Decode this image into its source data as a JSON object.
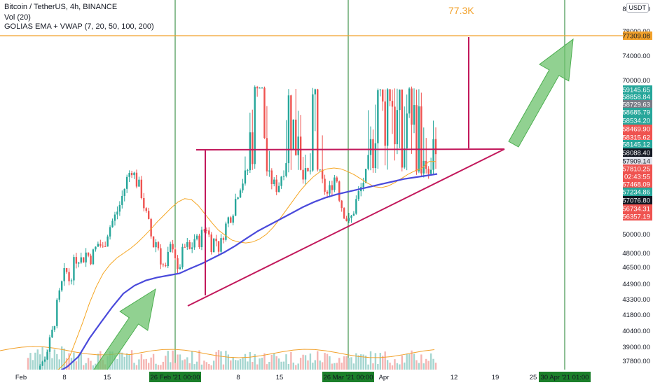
{
  "header": {
    "title": "Bitcoin / TetherUS, 4h, BINANCE",
    "vol": "Vol (20)",
    "indicator": "GOLIAS EMA + VWAP (7, 20, 50, 100, 200)"
  },
  "currency_button": "USDT",
  "target_annotation": "77.3K",
  "colors": {
    "up": "#26a69a",
    "down": "#ef5350",
    "ema": "#f5a623",
    "vwap": "#4a4adb",
    "triangle": "#c2185b",
    "arrow": "#6cc26c",
    "target_line": "#f2a12b",
    "vline": "#1b7f2a"
  },
  "chart_data": {
    "type": "candlestick",
    "symbol": "BTCUSDT",
    "timeframe": "4h",
    "exchange": "BINANCE",
    "y_axis": {
      "scale": "log",
      "ticks": [
        "80000.00",
        "78000.00",
        "74000.00",
        "70000.00",
        "50000.00",
        "48000.00",
        "46500.00",
        "44900.00",
        "43300.00",
        "41800.00",
        "40400.00",
        "39000.00",
        "37800.00"
      ],
      "labels": [
        {
          "text": "77309.08",
          "color": "#f2a12b",
          "fg": "#131722"
        },
        {
          "text": "59145.65",
          "color": "#26a69a",
          "fg": "#ffffff"
        },
        {
          "text": "58858.84",
          "color": "#26a69a",
          "fg": "#ffffff"
        },
        {
          "text": "58729.63",
          "color": "#787b86",
          "fg": "#ffffff"
        },
        {
          "text": "58685.79",
          "color": "#26a69a",
          "fg": "#ffffff"
        },
        {
          "text": "58534.20",
          "color": "#26a69a",
          "fg": "#ffffff"
        },
        {
          "text": "58469.90",
          "color": "#ef5350",
          "fg": "#ffffff"
        },
        {
          "text": "58315.62",
          "color": "#ef5350",
          "fg": "#ffffff"
        },
        {
          "text": "58145.12",
          "color": "#26a69a",
          "fg": "#ffffff"
        },
        {
          "text": "58088.40",
          "color": "#131722",
          "fg": "#ffffff"
        },
        {
          "text": "57909.14",
          "color": "#e0e3eb",
          "fg": "#131722"
        },
        {
          "text": "57810.25",
          "color": "#ef5350",
          "fg": "#ffffff"
        },
        {
          "text": "02:43:55",
          "color": "#ef5350",
          "fg": "#ffffff"
        },
        {
          "text": "57468.09",
          "color": "#ef5350",
          "fg": "#ffffff"
        },
        {
          "text": "57234.86",
          "color": "#26a69a",
          "fg": "#ffffff"
        },
        {
          "text": "57076.80",
          "color": "#131722",
          "fg": "#ffffff"
        },
        {
          "text": "56734.31",
          "color": "#ef5350",
          "fg": "#ffffff"
        },
        {
          "text": "56357.19",
          "color": "#ef5350",
          "fg": "#ffffff"
        }
      ]
    },
    "x_axis": {
      "ticks": [
        "Feb",
        "8",
        "15",
        "26 Feb '21  00:00",
        "8",
        "15",
        "26 Mar '21  00:00",
        "Apr",
        "12",
        "19",
        "25",
        "30 Apr '21  01:00"
      ],
      "highlighted": [
        "26 Feb '21  00:00",
        "26 Mar '21  00:00",
        "30 Apr '21  01:00"
      ]
    },
    "candles_close": [
      33500,
      34200,
      35800,
      36900,
      38200,
      39100,
      40500,
      42800,
      44600,
      46300,
      45100,
      46900,
      47800,
      47200,
      48100,
      47400,
      48300,
      49200,
      48400,
      50100,
      51300,
      52200,
      53400,
      55100,
      56900,
      57800,
      56200,
      55400,
      53000,
      51200,
      48800,
      49400,
      47100,
      46200,
      48400,
      49100,
      45600,
      47900,
      48900,
      48200,
      49600,
      49100,
      50400,
      50900,
      48800,
      49700,
      48400,
      50200,
      51800,
      52300,
      54400,
      55800,
      56600,
      57900,
      58600,
      60200,
      59600,
      58100,
      56700,
      55900,
      55400,
      57200,
      58300,
      58900,
      58100,
      58800,
      57300,
      56900,
      57600,
      58800,
      57100,
      55600,
      54600,
      55900,
      57200,
      53900,
      52500,
      51300,
      52300,
      54200,
      55400,
      56800,
      57300,
      58600,
      59100,
      58400,
      58900,
      59200,
      58700,
      58300,
      57900,
      58600,
      59000,
      58300,
      58100,
      57500,
      56900,
      57300,
      57800
    ],
    "ema_20": [
      33000,
      34000,
      35300,
      36700,
      38100,
      39600,
      41200,
      43000,
      44600,
      45900,
      46800,
      47500,
      48000,
      48500,
      49100,
      49800,
      50600,
      51500,
      52300,
      53100,
      53800,
      54200,
      54100,
      53400,
      52400,
      51400,
      50500,
      49900,
      49400,
      49200,
      49100,
      49200,
      49500,
      50000,
      50800,
      51800,
      52900,
      54000,
      55100,
      56000,
      56800,
      57400,
      57700,
      57800,
      57700,
      57400,
      57000,
      56500,
      56000,
      55600,
      55500,
      55700,
      56100,
      56600,
      57100,
      57500,
      57800,
      57900,
      57900
    ],
    "vwap": [
      29000,
      30000,
      31200,
      32400,
      33700,
      35000,
      36500,
      38200,
      39800,
      41200,
      42600,
      43900,
      44700,
      45200,
      45500,
      45700,
      45900,
      46400,
      46900,
      47500,
      48100,
      48800,
      49600,
      50400,
      51100,
      51800,
      52500,
      53200,
      53800,
      54300,
      54700,
      55000,
      55300,
      55600,
      55900,
      56200,
      56500,
      56700,
      56900,
      57100
    ]
  }
}
